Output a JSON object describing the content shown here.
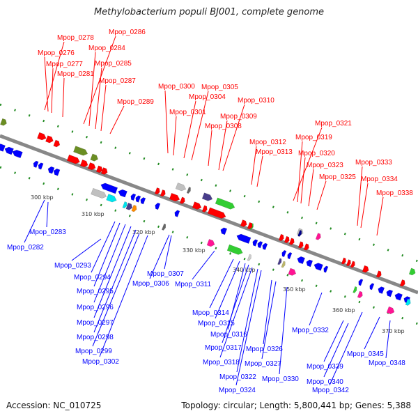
{
  "title": "Methylobacterium populi BJ001, complete genome",
  "footer": {
    "accession": "Accession: NC_010725",
    "topology": "Topology: circular; Length: 5,800,441 bp; Genes: 5,388"
  },
  "colors": {
    "forward": "#ff0000",
    "reverse": "#0000ff",
    "axis": "#888888",
    "ruler": "#228b22"
  },
  "scale_labels": [
    "300 kbp",
    "310 kbp",
    "320 kbp",
    "330 kbp",
    "340 kbp",
    "350 kbp",
    "360 kbp",
    "370 kbp"
  ],
  "forward_labels": [
    "Mpop_0278",
    "Mpop_0286",
    "Mpop_0276",
    "Mpop_0284",
    "Mpop_0277",
    "Mpop_0285",
    "Mpop_0281",
    "Mpop_0287",
    "Mpop_0289",
    "Mpop_0300",
    "Mpop_0305",
    "Mpop_0304",
    "Mpop_0310",
    "Mpop_0301",
    "Mpop_0309",
    "Mpop_0308",
    "Mpop_0321",
    "Mpop_0312",
    "Mpop_0319",
    "Mpop_0313",
    "Mpop_0320",
    "Mpop_0323",
    "Mpop_0325",
    "Mpop_0333",
    "Mpop_0334",
    "Mpop_0338"
  ],
  "reverse_labels": [
    "Mpop_0283",
    "Mpop_0282",
    "Mpop_0293",
    "Mpop_0294",
    "Mpop_0295",
    "Mpop_0296",
    "Mpop_0297",
    "Mpop_0298",
    "Mpop_0299",
    "Mpop_0302",
    "Mpop_0307",
    "Mpop_0306",
    "Mpop_0311",
    "Mpop_0314",
    "Mpop_0315",
    "Mpop_0316",
    "Mpop_0317",
    "Mpop_0318",
    "Mpop_0322",
    "Mpop_0324",
    "Mpop_0326",
    "Mpop_0327",
    "Mpop_0330",
    "Mpop_0332",
    "Mpop_0339",
    "Mpop_0340",
    "Mpop_0342",
    "Mpop_0345",
    "Mpop_0348"
  ]
}
